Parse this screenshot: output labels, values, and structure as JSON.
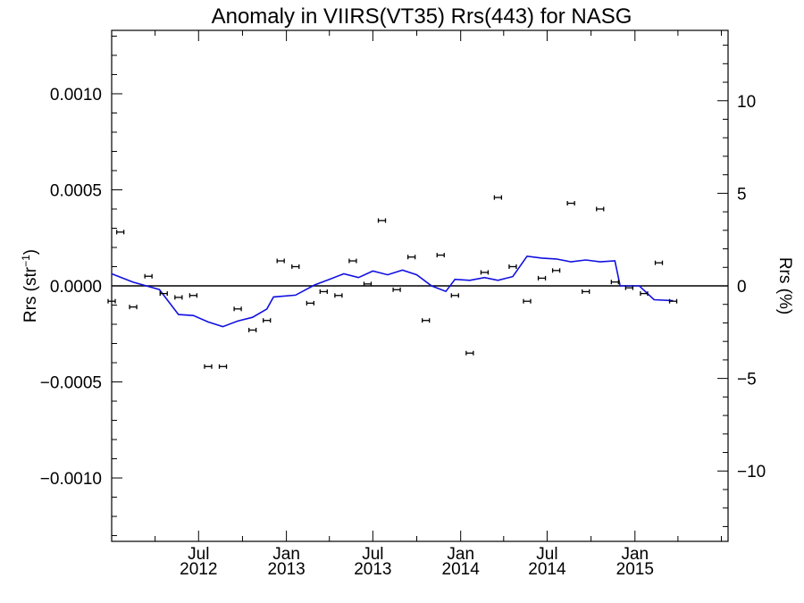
{
  "chart_data": {
    "type": "scatter",
    "title": "Anomaly in VIIRS(VT35) Rrs(443) for NASG",
    "ylabel_left": "Rrs (str",
    "ylabel_left_sup": "−1",
    "ylabel_left_close": ")",
    "ylabel_right": "Rrs (%)",
    "xlim": [
      "2012-01-01",
      "2015-07-15"
    ],
    "ylim_left": [
      -0.00133,
      0.00133
    ],
    "ylim_right": [
      -13.8,
      13.8
    ],
    "left_ticks": [
      {
        "value": 0.001,
        "label": "0.0010"
      },
      {
        "value": 0.0005,
        "label": "0.0005"
      },
      {
        "value": 0.0,
        "label": "0.0000"
      },
      {
        "value": -0.0005,
        "label": "−0.0005"
      },
      {
        "value": -0.001,
        "label": "−0.0010"
      }
    ],
    "right_ticks": [
      {
        "value": 10,
        "label": "10"
      },
      {
        "value": 5,
        "label": "5"
      },
      {
        "value": 0,
        "label": "0"
      },
      {
        "value": -5,
        "label": "−5"
      },
      {
        "value": -10,
        "label": "−10"
      }
    ],
    "x_ticks": [
      {
        "date": "2012-07-01",
        "line1": "Jul",
        "line2": "2012"
      },
      {
        "date": "2013-01-01",
        "line1": "Jan",
        "line2": "2013"
      },
      {
        "date": "2013-07-01",
        "line1": "Jul",
        "line2": "2013"
      },
      {
        "date": "2014-01-01",
        "line1": "Jan",
        "line2": "2014"
      },
      {
        "date": "2014-07-01",
        "line1": "Jul",
        "line2": "2014"
      },
      {
        "date": "2015-01-01",
        "line1": "Jan",
        "line2": "2015"
      }
    ],
    "grid": false,
    "zero_line": true,
    "series": [
      {
        "kind": "points_with_errorbars",
        "axis": "left",
        "color": "#000000",
        "points": [
          {
            "x": "2012-01-01",
            "y": -8e-05
          },
          {
            "x": "2012-01-19",
            "y": 0.00028
          },
          {
            "x": "2012-02-15",
            "y": -0.00011
          },
          {
            "x": "2012-03-18",
            "y": 5e-05
          },
          {
            "x": "2012-04-19",
            "y": -4e-05
          },
          {
            "x": "2012-05-20",
            "y": -6e-05
          },
          {
            "x": "2012-06-20",
            "y": -5e-05
          },
          {
            "x": "2012-07-21",
            "y": -0.00042
          },
          {
            "x": "2012-08-21",
            "y": -0.00042
          },
          {
            "x": "2012-09-21",
            "y": -0.00012
          },
          {
            "x": "2012-10-22",
            "y": -0.00023
          },
          {
            "x": "2012-11-21",
            "y": -0.00018
          },
          {
            "x": "2012-12-20",
            "y": 0.00013
          },
          {
            "x": "2013-01-20",
            "y": 0.0001
          },
          {
            "x": "2013-02-20",
            "y": -9e-05
          },
          {
            "x": "2013-03-20",
            "y": -3e-05
          },
          {
            "x": "2013-04-20",
            "y": -5e-05
          },
          {
            "x": "2013-05-20",
            "y": 0.00013
          },
          {
            "x": "2013-06-20",
            "y": 1e-05
          },
          {
            "x": "2013-07-20",
            "y": 0.00034
          },
          {
            "x": "2013-08-20",
            "y": -2e-05
          },
          {
            "x": "2013-09-20",
            "y": 0.00015
          },
          {
            "x": "2013-10-20",
            "y": -0.00018
          },
          {
            "x": "2013-11-20",
            "y": 0.00016
          },
          {
            "x": "2013-12-20",
            "y": -5e-05
          },
          {
            "x": "2014-01-20",
            "y": -0.00035
          },
          {
            "x": "2014-02-20",
            "y": 7e-05
          },
          {
            "x": "2014-03-20",
            "y": 0.00046
          },
          {
            "x": "2014-04-20",
            "y": 0.0001
          },
          {
            "x": "2014-05-20",
            "y": -8e-05
          },
          {
            "x": "2014-06-20",
            "y": 4e-05
          },
          {
            "x": "2014-07-20",
            "y": 8e-05
          },
          {
            "x": "2014-08-20",
            "y": 0.00043
          },
          {
            "x": "2014-09-20",
            "y": -3e-05
          },
          {
            "x": "2014-10-20",
            "y": 0.0004
          },
          {
            "x": "2014-11-20",
            "y": 2e-05
          },
          {
            "x": "2014-12-20",
            "y": -1e-05
          },
          {
            "x": "2015-01-20",
            "y": -4e-05
          },
          {
            "x": "2015-02-20",
            "y": 0.00012
          },
          {
            "x": "2015-03-22",
            "y": -8e-05
          }
        ]
      },
      {
        "kind": "line",
        "axis": "right",
        "color": "#1010e0",
        "points": [
          {
            "x": "2012-01-01",
            "y": 0.65
          },
          {
            "x": "2012-02-15",
            "y": 0.2
          },
          {
            "x": "2012-04-10",
            "y": -0.2
          },
          {
            "x": "2012-05-20",
            "y": -1.55
          },
          {
            "x": "2012-06-20",
            "y": -1.6
          },
          {
            "x": "2012-07-21",
            "y": -1.95
          },
          {
            "x": "2012-08-21",
            "y": -2.2
          },
          {
            "x": "2012-09-21",
            "y": -1.9
          },
          {
            "x": "2012-10-22",
            "y": -1.7
          },
          {
            "x": "2012-11-21",
            "y": -1.25
          },
          {
            "x": "2012-12-05",
            "y": -0.6
          },
          {
            "x": "2013-01-20",
            "y": -0.5
          },
          {
            "x": "2013-03-01",
            "y": 0.05
          },
          {
            "x": "2013-04-01",
            "y": 0.35
          },
          {
            "x": "2013-05-01",
            "y": 0.65
          },
          {
            "x": "2013-06-01",
            "y": 0.45
          },
          {
            "x": "2013-07-01",
            "y": 0.8
          },
          {
            "x": "2013-08-01",
            "y": 0.6
          },
          {
            "x": "2013-09-01",
            "y": 0.85
          },
          {
            "x": "2013-10-01",
            "y": 0.6
          },
          {
            "x": "2013-11-01",
            "y": 0.0
          },
          {
            "x": "2013-12-01",
            "y": -0.3
          },
          {
            "x": "2013-12-20",
            "y": 0.35
          },
          {
            "x": "2014-01-20",
            "y": 0.3
          },
          {
            "x": "2014-02-20",
            "y": 0.45
          },
          {
            "x": "2014-03-20",
            "y": 0.3
          },
          {
            "x": "2014-04-20",
            "y": 0.5
          },
          {
            "x": "2014-05-20",
            "y": 1.6
          },
          {
            "x": "2014-06-20",
            "y": 1.5
          },
          {
            "x": "2014-07-20",
            "y": 1.45
          },
          {
            "x": "2014-08-20",
            "y": 1.3
          },
          {
            "x": "2014-09-20",
            "y": 1.4
          },
          {
            "x": "2014-10-20",
            "y": 1.3
          },
          {
            "x": "2014-11-20",
            "y": 1.35
          },
          {
            "x": "2014-12-01",
            "y": 0.0
          },
          {
            "x": "2015-01-10",
            "y": 0.0
          },
          {
            "x": "2015-02-10",
            "y": -0.75
          },
          {
            "x": "2015-03-22",
            "y": -0.8
          }
        ]
      }
    ]
  }
}
